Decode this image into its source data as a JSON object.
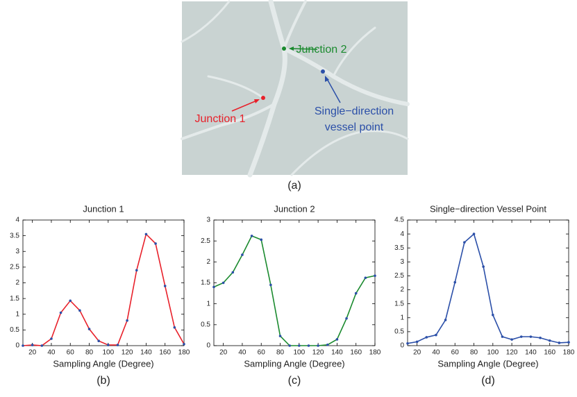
{
  "image": {
    "caption": "(a)",
    "annotations": [
      {
        "lines": [
          "Junction 2"
        ],
        "color": "#1a8a2e"
      },
      {
        "lines": [
          "Junction 1"
        ],
        "color": "#e8202a"
      },
      {
        "lines": [
          "Single−direction",
          "vessel point"
        ],
        "color": "#2b4fa8"
      }
    ]
  },
  "chart_data": [
    {
      "type": "line",
      "title": "Junction 1",
      "x_label": "Sampling Angle (Degree)",
      "caption": "(b)",
      "x": [
        10,
        20,
        30,
        40,
        50,
        60,
        70,
        80,
        90,
        100,
        110,
        120,
        130,
        140,
        150,
        160,
        170,
        180
      ],
      "series": [
        {
          "color": "#e8202a",
          "marker_color": "#2b4fa8",
          "values": [
            0,
            0.02,
            0,
            0.22,
            1.05,
            1.43,
            1.12,
            0.53,
            0.15,
            0.02,
            0.02,
            0.8,
            2.4,
            3.55,
            3.25,
            1.9,
            0.58,
            0.05
          ]
        }
      ],
      "xlim": [
        10,
        180
      ],
      "xticks": [
        20,
        40,
        60,
        80,
        100,
        120,
        140,
        160,
        180
      ],
      "ylim": [
        0,
        4
      ],
      "yticks": [
        0,
        0.5,
        1,
        1.5,
        2,
        2.5,
        3,
        3.5,
        4
      ]
    },
    {
      "type": "line",
      "title": "Junction 2",
      "x_label": "Sampling Angle (Degree)",
      "caption": "(c)",
      "x": [
        10,
        20,
        30,
        40,
        50,
        60,
        70,
        80,
        90,
        100,
        110,
        120,
        130,
        140,
        150,
        160,
        170,
        180
      ],
      "series": [
        {
          "color": "#1a8a2e",
          "marker_color": "#2b4fa8",
          "values": [
            1.4,
            1.5,
            1.75,
            2.17,
            2.62,
            2.53,
            1.45,
            0.23,
            0,
            0,
            0,
            0,
            0.02,
            0.15,
            0.65,
            1.25,
            1.62,
            1.67
          ]
        }
      ],
      "xlim": [
        10,
        180
      ],
      "xticks": [
        20,
        40,
        60,
        80,
        100,
        120,
        140,
        160,
        180
      ],
      "ylim": [
        0,
        3
      ],
      "yticks": [
        0,
        0.5,
        1,
        1.5,
        2,
        2.5,
        3
      ]
    },
    {
      "type": "line",
      "title": "Single−direction Vessel Point",
      "x_label": "Sampling Angle (Degree)",
      "caption": "(d)",
      "x": [
        10,
        20,
        30,
        40,
        50,
        60,
        70,
        80,
        90,
        100,
        110,
        120,
        130,
        140,
        150,
        160,
        170,
        180
      ],
      "series": [
        {
          "color": "#2b4fa8",
          "marker_color": "#2b4fa8",
          "values": [
            0.08,
            0.14,
            0.3,
            0.38,
            0.92,
            2.27,
            3.7,
            4.0,
            2.83,
            1.1,
            0.32,
            0.22,
            0.32,
            0.32,
            0.28,
            0.18,
            0.1,
            0.12
          ]
        }
      ],
      "xlim": [
        10,
        180
      ],
      "xticks": [
        20,
        40,
        60,
        80,
        100,
        120,
        140,
        160,
        180
      ],
      "ylim": [
        0,
        4.5
      ],
      "yticks": [
        0,
        0.5,
        1,
        1.5,
        2,
        2.5,
        3,
        3.5,
        4,
        4.5
      ]
    }
  ]
}
